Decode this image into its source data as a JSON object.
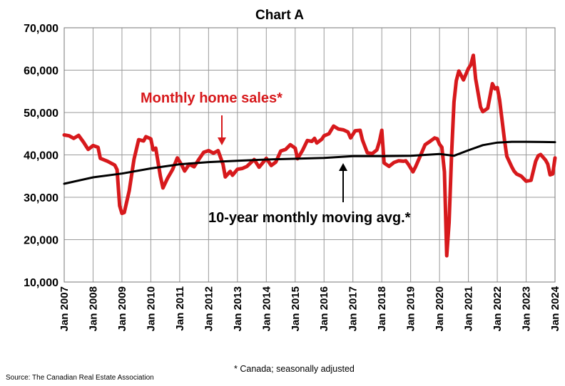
{
  "chart_data": {
    "type": "line",
    "title": "Chart A",
    "ylim": [
      10000,
      70000
    ],
    "yticks": [
      10000,
      20000,
      30000,
      40000,
      50000,
      60000,
      70000
    ],
    "ytick_labels": [
      "10,000",
      "20,000",
      "30,000",
      "40,000",
      "50,000",
      "60,000",
      "70,000"
    ],
    "xlim": [
      2007.0,
      2024.0
    ],
    "xticks": [
      2007,
      2008,
      2009,
      2010,
      2011,
      2012,
      2013,
      2014,
      2015,
      2016,
      2017,
      2018,
      2019,
      2020,
      2021,
      2022,
      2023,
      2024
    ],
    "xtick_labels": [
      "Jan 2007",
      "Jan 2008",
      "Jan 2009",
      "Jan 2010",
      "Jan 2011",
      "Jan 2012",
      "Jan 2013",
      "Jan 2014",
      "Jan 2015",
      "Jan 2016",
      "Jan 2017",
      "Jan 2018",
      "Jan 2019",
      "Jan 2020",
      "Jan 2021",
      "Jan 2022",
      "Jan 2023",
      "Jan 2024"
    ],
    "grid": true,
    "series": [
      {
        "name": "Monthly home sales*",
        "color": "#d7191c",
        "points": [
          [
            2007.0,
            44700
          ],
          [
            2007.17,
            44500
          ],
          [
            2007.33,
            43900
          ],
          [
            2007.5,
            44600
          ],
          [
            2007.67,
            43000
          ],
          [
            2007.83,
            41300
          ],
          [
            2008.0,
            42200
          ],
          [
            2008.17,
            41800
          ],
          [
            2008.25,
            39200
          ],
          [
            2008.5,
            38500
          ],
          [
            2008.75,
            37600
          ],
          [
            2008.83,
            36500
          ],
          [
            2008.92,
            28000
          ],
          [
            2009.0,
            26200
          ],
          [
            2009.08,
            26400
          ],
          [
            2009.25,
            31500
          ],
          [
            2009.42,
            39000
          ],
          [
            2009.58,
            43600
          ],
          [
            2009.75,
            43300
          ],
          [
            2009.83,
            44300
          ],
          [
            2010.0,
            43800
          ],
          [
            2010.08,
            41200
          ],
          [
            2010.17,
            41600
          ],
          [
            2010.33,
            35000
          ],
          [
            2010.42,
            32200
          ],
          [
            2010.58,
            34500
          ],
          [
            2010.75,
            36500
          ],
          [
            2010.92,
            39300
          ],
          [
            2011.08,
            37500
          ],
          [
            2011.17,
            36200
          ],
          [
            2011.33,
            37800
          ],
          [
            2011.5,
            37200
          ],
          [
            2011.67,
            39000
          ],
          [
            2011.83,
            40600
          ],
          [
            2012.0,
            41000
          ],
          [
            2012.17,
            40400
          ],
          [
            2012.33,
            41000
          ],
          [
            2012.5,
            37800
          ],
          [
            2012.58,
            34800
          ],
          [
            2012.75,
            36100
          ],
          [
            2012.83,
            35200
          ],
          [
            2013.0,
            36600
          ],
          [
            2013.17,
            36800
          ],
          [
            2013.33,
            37300
          ],
          [
            2013.58,
            38900
          ],
          [
            2013.75,
            37100
          ],
          [
            2013.92,
            38500
          ],
          [
            2014.0,
            39200
          ],
          [
            2014.17,
            37500
          ],
          [
            2014.33,
            38300
          ],
          [
            2014.5,
            40900
          ],
          [
            2014.67,
            41300
          ],
          [
            2014.83,
            42400
          ],
          [
            2015.0,
            41600
          ],
          [
            2015.08,
            39100
          ],
          [
            2015.25,
            41000
          ],
          [
            2015.42,
            43400
          ],
          [
            2015.58,
            43200
          ],
          [
            2015.67,
            43900
          ],
          [
            2015.75,
            42800
          ],
          [
            2015.92,
            43700
          ],
          [
            2016.0,
            44500
          ],
          [
            2016.17,
            45000
          ],
          [
            2016.33,
            46800
          ],
          [
            2016.5,
            46100
          ],
          [
            2016.67,
            45900
          ],
          [
            2016.83,
            45400
          ],
          [
            2016.92,
            44000
          ],
          [
            2017.08,
            45700
          ],
          [
            2017.25,
            45800
          ],
          [
            2017.33,
            43500
          ],
          [
            2017.5,
            40500
          ],
          [
            2017.67,
            40300
          ],
          [
            2017.83,
            41200
          ],
          [
            2017.92,
            43200
          ],
          [
            2018.0,
            45800
          ],
          [
            2018.08,
            38100
          ],
          [
            2018.25,
            37300
          ],
          [
            2018.42,
            38200
          ],
          [
            2018.58,
            38600
          ],
          [
            2018.75,
            38500
          ],
          [
            2018.83,
            38600
          ],
          [
            2018.92,
            37800
          ],
          [
            2019.08,
            36000
          ],
          [
            2019.17,
            37200
          ],
          [
            2019.33,
            39700
          ],
          [
            2019.5,
            42400
          ],
          [
            2019.67,
            43200
          ],
          [
            2019.83,
            44000
          ],
          [
            2019.92,
            43800
          ],
          [
            2020.0,
            42500
          ],
          [
            2020.08,
            41800
          ],
          [
            2020.17,
            36000
          ],
          [
            2020.25,
            16200
          ],
          [
            2020.33,
            24000
          ],
          [
            2020.42,
            40500
          ],
          [
            2020.5,
            52500
          ],
          [
            2020.58,
            57500
          ],
          [
            2020.67,
            59800
          ],
          [
            2020.83,
            57700
          ],
          [
            2021.0,
            60400
          ],
          [
            2021.08,
            61200
          ],
          [
            2021.17,
            63500
          ],
          [
            2021.25,
            58000
          ],
          [
            2021.42,
            51300
          ],
          [
            2021.5,
            50200
          ],
          [
            2021.67,
            51000
          ],
          [
            2021.83,
            56800
          ],
          [
            2021.92,
            55600
          ],
          [
            2022.0,
            55900
          ],
          [
            2022.08,
            53000
          ],
          [
            2022.25,
            43500
          ],
          [
            2022.33,
            39700
          ],
          [
            2022.5,
            37200
          ],
          [
            2022.58,
            36200
          ],
          [
            2022.67,
            35500
          ],
          [
            2022.83,
            35000
          ],
          [
            2023.0,
            33800
          ],
          [
            2023.17,
            34000
          ],
          [
            2023.33,
            38500
          ],
          [
            2023.42,
            39800
          ],
          [
            2023.5,
            40100
          ],
          [
            2023.67,
            38800
          ],
          [
            2023.75,
            37800
          ],
          [
            2023.83,
            35300
          ],
          [
            2023.92,
            35500
          ],
          [
            2024.0,
            39300
          ]
        ]
      },
      {
        "name": "10-year monthly moving avg.*",
        "color": "#000000",
        "points": [
          [
            2007.0,
            33200
          ],
          [
            2008.0,
            34700
          ],
          [
            2009.0,
            35600
          ],
          [
            2010.0,
            36800
          ],
          [
            2011.0,
            37800
          ],
          [
            2012.0,
            38300
          ],
          [
            2013.0,
            38600
          ],
          [
            2014.0,
            38900
          ],
          [
            2015.0,
            39100
          ],
          [
            2016.0,
            39300
          ],
          [
            2017.0,
            39700
          ],
          [
            2018.0,
            39700
          ],
          [
            2019.0,
            39800
          ],
          [
            2019.5,
            40000
          ],
          [
            2020.0,
            40200
          ],
          [
            2020.5,
            39800
          ],
          [
            2021.0,
            41100
          ],
          [
            2021.5,
            42300
          ],
          [
            2022.0,
            42900
          ],
          [
            2022.5,
            43100
          ],
          [
            2023.0,
            43100
          ],
          [
            2024.0,
            43000
          ]
        ]
      }
    ],
    "annotations": [
      {
        "text": "Monthly home sales*",
        "color": "#d7191c"
      },
      {
        "text": "10-year monthly moving avg.*",
        "color": "#000000"
      }
    ]
  },
  "footnote": "* Canada; seasonally adjusted",
  "source": "Source: The Canadian Real Estate Association"
}
